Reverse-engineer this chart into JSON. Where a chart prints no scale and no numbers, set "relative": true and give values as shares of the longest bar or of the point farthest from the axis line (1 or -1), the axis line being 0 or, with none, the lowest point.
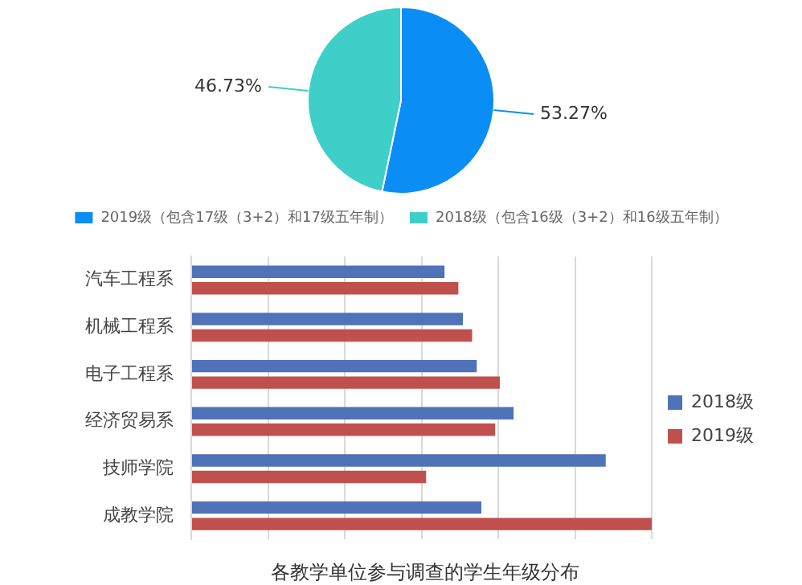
{
  "chart_data": [
    {
      "type": "pie",
      "categories": [
        "2019级（包含17级（3+2）和17级五年制）",
        "2018级（包含16级（3+2）和16级五年制）"
      ],
      "values": [
        53.27,
        46.73
      ],
      "colors": [
        "#0a8ef5",
        "#3ecfc9"
      ],
      "value_labels": [
        "53.27%",
        "46.73%"
      ],
      "legend": "bottom"
    },
    {
      "type": "bar",
      "orientation": "horizontal",
      "relative": true,
      "title": "各教学单位参与调查的学生年级分布",
      "categories": [
        "汽车工程系",
        "机械工程系",
        "电子工程系",
        "经济贸易系",
        "技师学院",
        "成教学院"
      ],
      "series": [
        {
          "name": "2018级",
          "color": "#4f72b8",
          "values": [
            0.55,
            0.59,
            0.62,
            0.7,
            0.9,
            0.63
          ]
        },
        {
          "name": "2019级",
          "color": "#c0504d",
          "values": [
            0.58,
            0.61,
            0.67,
            0.66,
            0.51,
            1
          ]
        }
      ],
      "grid": "x",
      "legend": "right"
    }
  ]
}
